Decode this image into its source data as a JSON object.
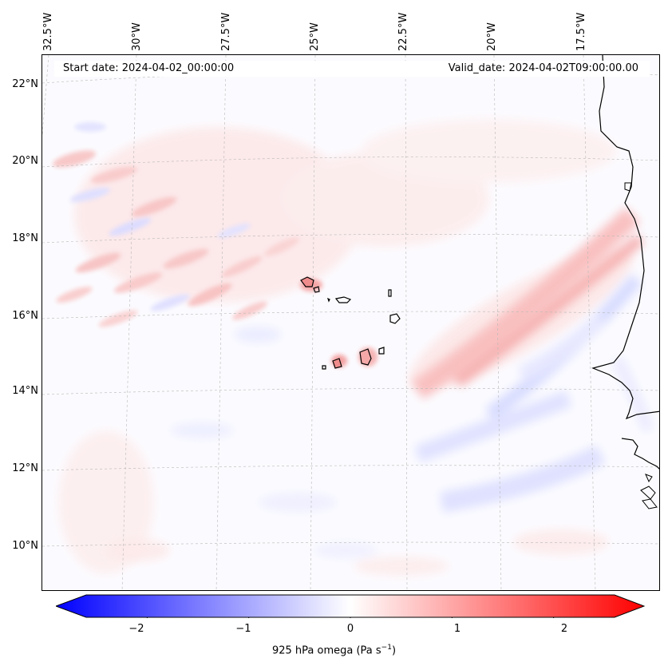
{
  "header": {
    "start_date": "Start date: 2024-04-02_00:00:00",
    "valid_date": "Valid_date: 2024-04-02T09:00:00.00"
  },
  "map": {
    "longitude_labels": [
      "32.5°W",
      "30°W",
      "27.5°W",
      "25°W",
      "22.5°W",
      "20°W",
      "17.5°W"
    ],
    "latitude_labels": [
      "22°N",
      "20°N",
      "18°N",
      "16°N",
      "14°N",
      "12°N",
      "10°N"
    ],
    "lat_range": [
      9,
      22.5
    ],
    "lon_range": [
      -33,
      -15.5
    ],
    "gridlines": true,
    "field_colors": {
      "positive": "#ff0000",
      "negative": "#0000ff",
      "neutral": "#ffffff"
    }
  },
  "colorbar": {
    "ticks": [
      "−2",
      "−1",
      "0",
      "1",
      "2"
    ],
    "tick_values": [
      -2,
      -1,
      0,
      1,
      2
    ],
    "range": [
      -2.6,
      2.6
    ],
    "label_prefix": "925 hPa omega (Pa s",
    "label_exponent": "−1",
    "label_suffix": ")"
  }
}
